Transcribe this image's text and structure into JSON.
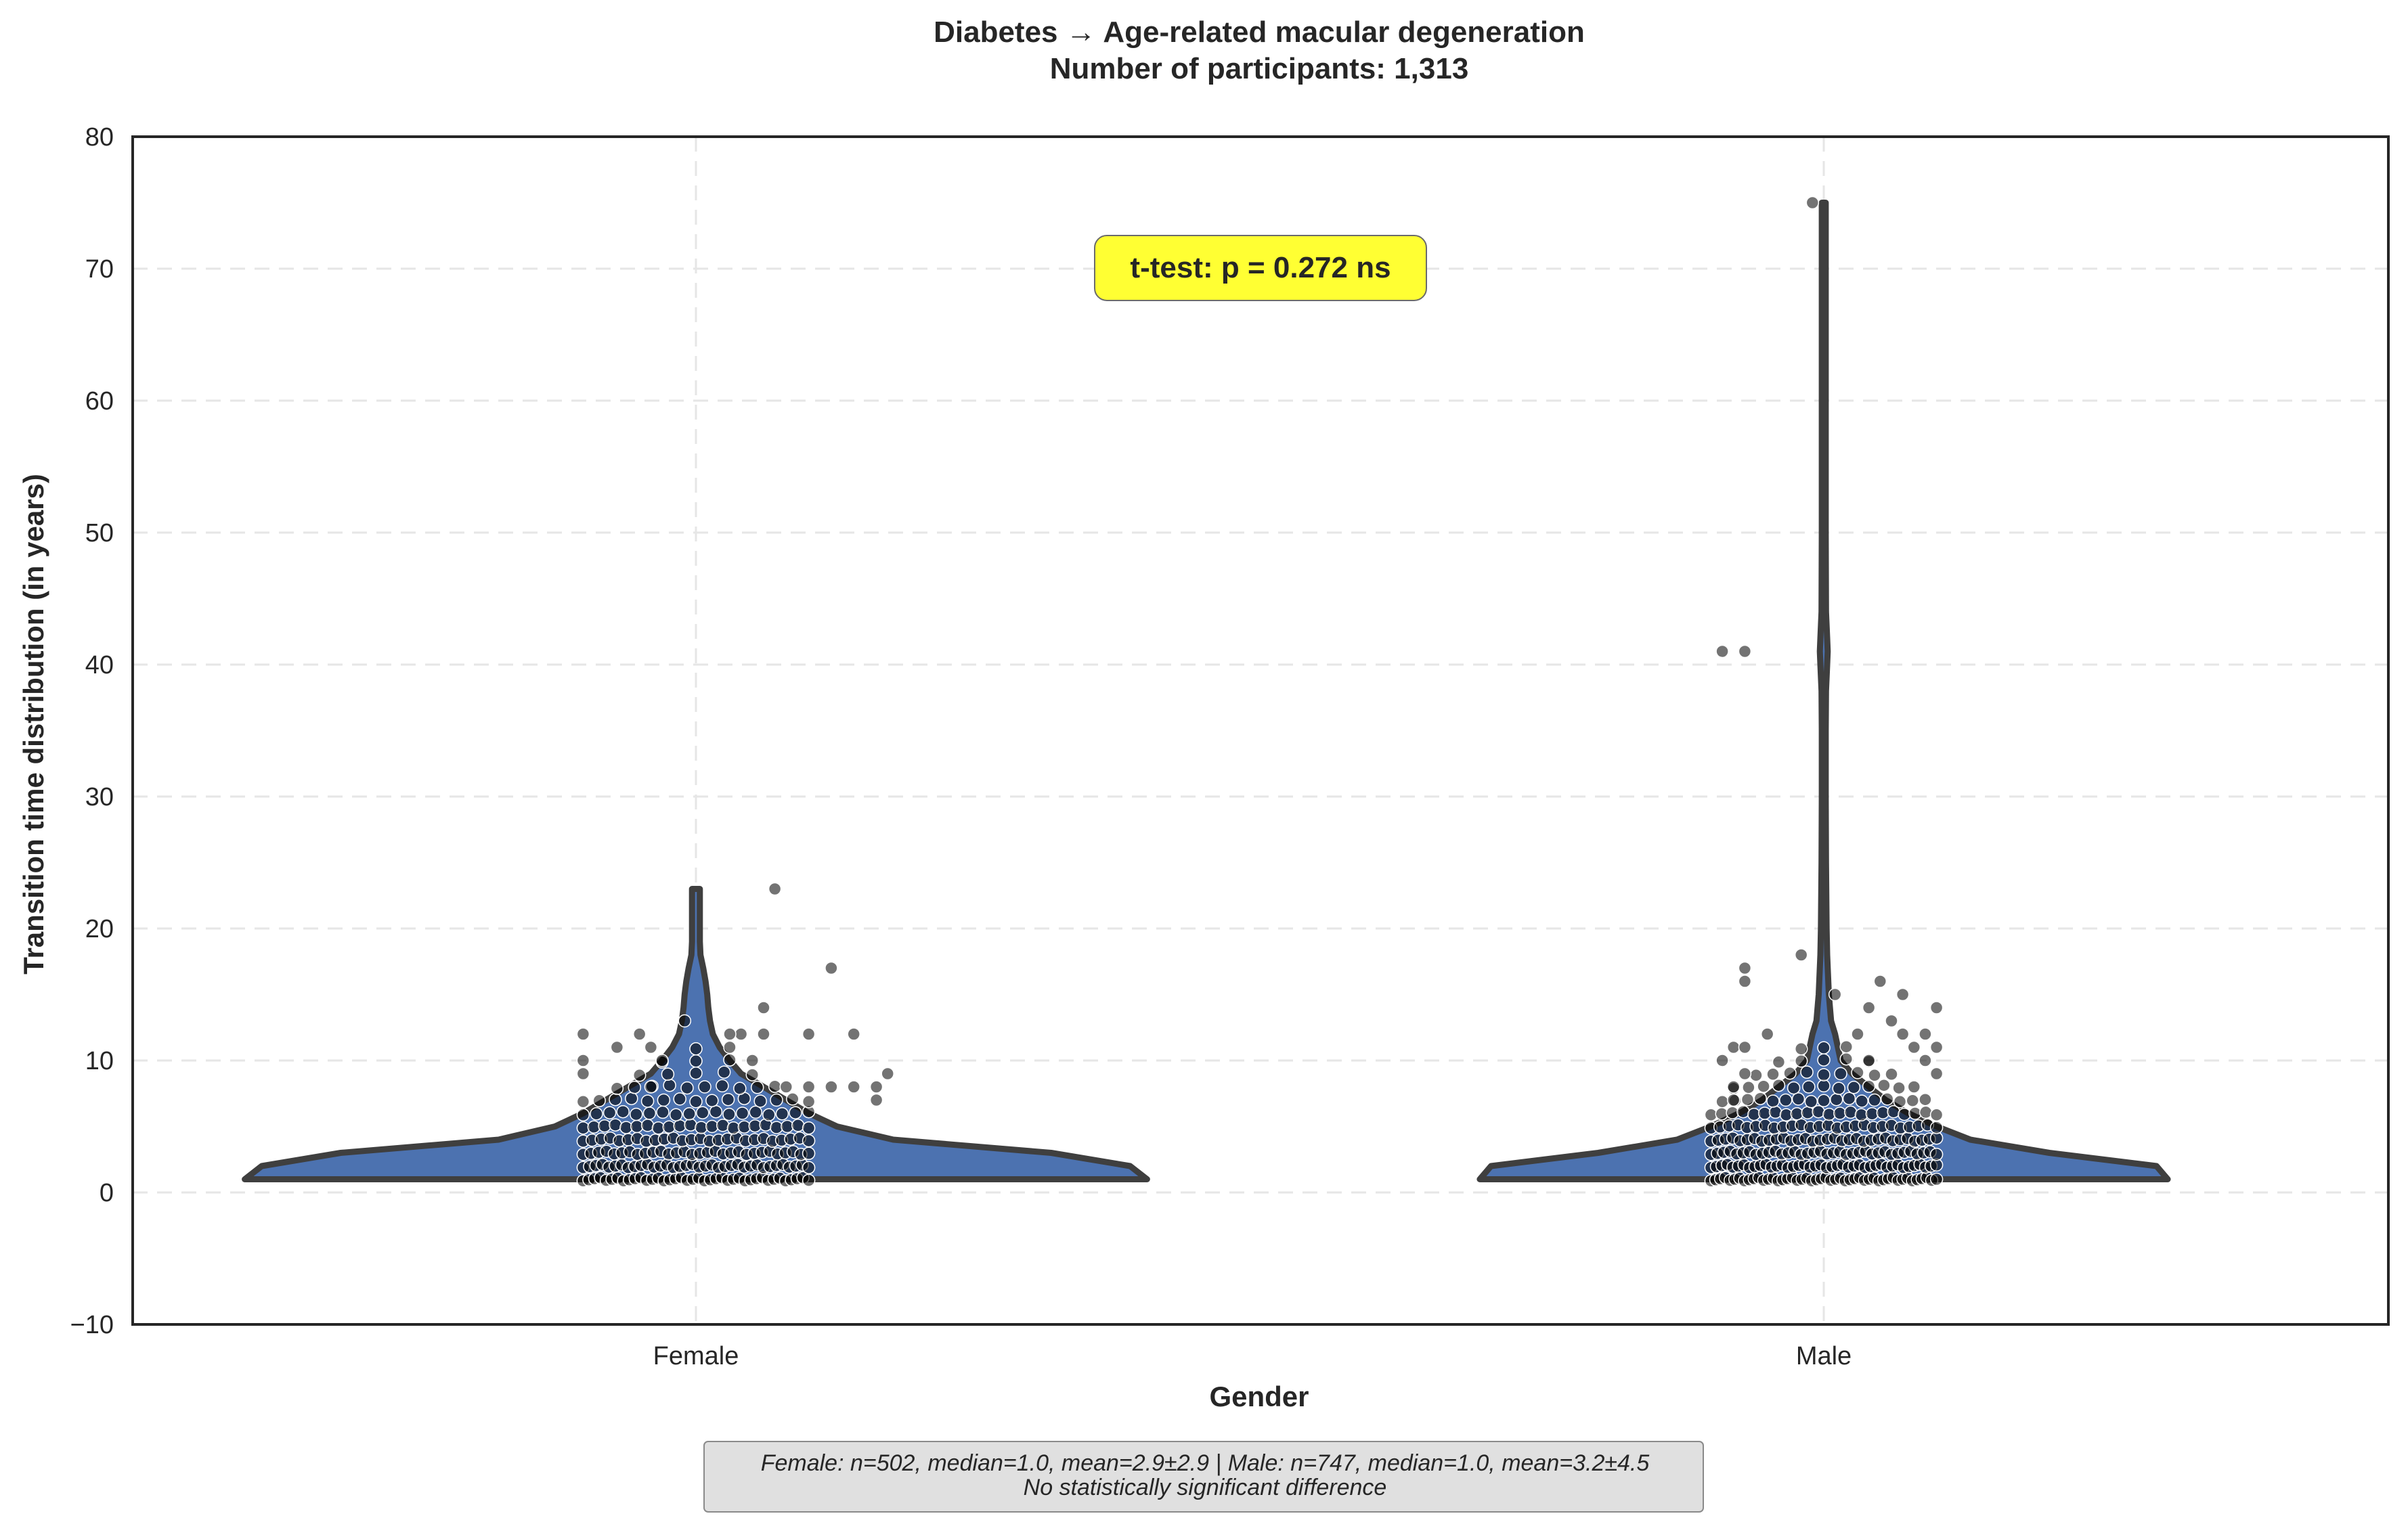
{
  "chart_data": {
    "type": "violin",
    "title_line1": "Diabetes → Age-related macular degeneration",
    "title_line2": "Number of participants: 1,313",
    "xlabel": "Gender",
    "ylabel": "Transition time distribution (in years)",
    "ylim": [
      -10,
      80
    ],
    "yticks": [
      -10,
      0,
      10,
      20,
      30,
      40,
      50,
      60,
      70,
      80
    ],
    "ytick_labels": [
      "−10",
      "0",
      "10",
      "20",
      "30",
      "40",
      "50",
      "60",
      "70",
      "80"
    ],
    "categories": [
      "Female",
      "Male"
    ],
    "grid": true,
    "colors": {
      "violin_fill": "#4c72b0",
      "violin_edge": "#3f3f3f",
      "points": "#000000",
      "stat_box": "#ffff33",
      "footer_box": "#e0e0e0",
      "grid": "#e6e6e6"
    },
    "violins": [
      {
        "category": "Female",
        "profile": [
          [
            1,
            0.8
          ],
          [
            2,
            0.77
          ],
          [
            3,
            0.63
          ],
          [
            4,
            0.35
          ],
          [
            5,
            0.25
          ],
          [
            6,
            0.2
          ],
          [
            7,
            0.16
          ],
          [
            8,
            0.12
          ],
          [
            9,
            0.08
          ],
          [
            10,
            0.06
          ],
          [
            11,
            0.042
          ],
          [
            12,
            0.03
          ],
          [
            13,
            0.025
          ],
          [
            14,
            0.022
          ],
          [
            15,
            0.02
          ],
          [
            16,
            0.017
          ],
          [
            17,
            0.013
          ],
          [
            18,
            0.008
          ],
          [
            19,
            0.007
          ],
          [
            20,
            0.007
          ],
          [
            21,
            0.007
          ],
          [
            22,
            0.007
          ],
          [
            23,
            0.007
          ]
        ]
      },
      {
        "category": "Male",
        "profile": [
          [
            1,
            0.61
          ],
          [
            2,
            0.59
          ],
          [
            3,
            0.4
          ],
          [
            4,
            0.26
          ],
          [
            5,
            0.2
          ],
          [
            6,
            0.15
          ],
          [
            7,
            0.11
          ],
          [
            8,
            0.08
          ],
          [
            9,
            0.05
          ],
          [
            10,
            0.03
          ],
          [
            12,
            0.02
          ],
          [
            13,
            0.013
          ],
          [
            15,
            0.009
          ],
          [
            18,
            0.006
          ],
          [
            20,
            0.005
          ],
          [
            25,
            0.004
          ],
          [
            30,
            0.0035
          ],
          [
            35,
            0.0035
          ],
          [
            38,
            0.004
          ],
          [
            40,
            0.006
          ],
          [
            41,
            0.007
          ],
          [
            42,
            0.006
          ],
          [
            44,
            0.004
          ],
          [
            50,
            0.0035
          ],
          [
            60,
            0.0035
          ],
          [
            70,
            0.0035
          ],
          [
            75,
            0.0035
          ]
        ]
      }
    ],
    "points": [
      {
        "category": "Female",
        "outliers": [
          [
            -0.1,
            12
          ],
          [
            -0.1,
            10
          ],
          [
            -0.1,
            9
          ],
          [
            -0.07,
            11
          ],
          [
            -0.05,
            12
          ],
          [
            -0.04,
            11
          ],
          [
            -0.04,
            8
          ],
          [
            -0.03,
            10
          ],
          [
            -0.01,
            13
          ],
          [
            0.04,
            12
          ],
          [
            0.05,
            10
          ],
          [
            0.03,
            12
          ],
          [
            0.03,
            11
          ],
          [
            0.07,
            23
          ],
          [
            0.06,
            14
          ],
          [
            0.06,
            12
          ],
          [
            0.1,
            12
          ],
          [
            0.12,
            17
          ],
          [
            0.14,
            12
          ],
          [
            0.08,
            8
          ],
          [
            0.1,
            8
          ],
          [
            0.12,
            8
          ],
          [
            0.14,
            8
          ],
          [
            0.17,
            9
          ],
          [
            0.16,
            8
          ],
          [
            0.16,
            7
          ]
        ],
        "rows": [
          {
            "y": 1,
            "n": 40,
            "half": 0.1
          },
          {
            "y": 2,
            "n": 36,
            "half": 0.1
          },
          {
            "y": 3,
            "n": 30,
            "half": 0.1
          },
          {
            "y": 4,
            "n": 26,
            "half": 0.1
          },
          {
            "y": 5,
            "n": 22,
            "half": 0.1
          },
          {
            "y": 6,
            "n": 18,
            "half": 0.1
          },
          {
            "y": 7,
            "n": 15,
            "half": 0.1
          },
          {
            "y": 8,
            "n": 10,
            "half": 0.07
          },
          {
            "y": 9,
            "n": 5,
            "half": 0.05
          },
          {
            "y": 10,
            "n": 3,
            "half": 0.03
          },
          {
            "y": 11,
            "n": 1,
            "half": 0.01
          }
        ]
      },
      {
        "category": "Male",
        "outliers": [
          [
            -0.09,
            41
          ],
          [
            -0.07,
            41
          ],
          [
            -0.09,
            10
          ],
          [
            -0.08,
            8
          ],
          [
            -0.08,
            7
          ],
          [
            -0.07,
            17
          ],
          [
            -0.07,
            16
          ],
          [
            -0.08,
            11
          ],
          [
            -0.07,
            11
          ],
          [
            -0.07,
            9
          ],
          [
            -0.05,
            12
          ],
          [
            -0.02,
            18
          ],
          [
            0.01,
            15
          ],
          [
            0.05,
            16
          ],
          [
            0.04,
            14
          ],
          [
            0.03,
            12
          ],
          [
            0.04,
            10
          ],
          [
            0.06,
            13
          ],
          [
            0.07,
            15
          ],
          [
            0.07,
            12
          ],
          [
            0.08,
            11
          ],
          [
            0.09,
            12
          ],
          [
            0.09,
            10
          ],
          [
            0.1,
            11
          ],
          [
            0.1,
            9
          ],
          [
            0.1,
            14
          ],
          [
            -0.01,
            75
          ]
        ],
        "rows": [
          {
            "y": 1,
            "n": 48,
            "half": 0.1
          },
          {
            "y": 2,
            "n": 42,
            "half": 0.1
          },
          {
            "y": 3,
            "n": 36,
            "half": 0.1
          },
          {
            "y": 4,
            "n": 32,
            "half": 0.1
          },
          {
            "y": 5,
            "n": 26,
            "half": 0.1
          },
          {
            "y": 6,
            "n": 22,
            "half": 0.1
          },
          {
            "y": 7,
            "n": 17,
            "half": 0.09
          },
          {
            "y": 8,
            "n": 13,
            "half": 0.08
          },
          {
            "y": 9,
            "n": 9,
            "half": 0.06
          },
          {
            "y": 10,
            "n": 5,
            "half": 0.04
          },
          {
            "y": 11,
            "n": 3,
            "half": 0.02
          }
        ]
      }
    ],
    "stat_annotation": "t-test: p = 0.272 ns",
    "footer_line1": "Female: n=502, median=1.0, mean=2.9±2.9 | Male: n=747, median=1.0, mean=3.2±4.5",
    "footer_line2": "No statistically significant difference"
  }
}
